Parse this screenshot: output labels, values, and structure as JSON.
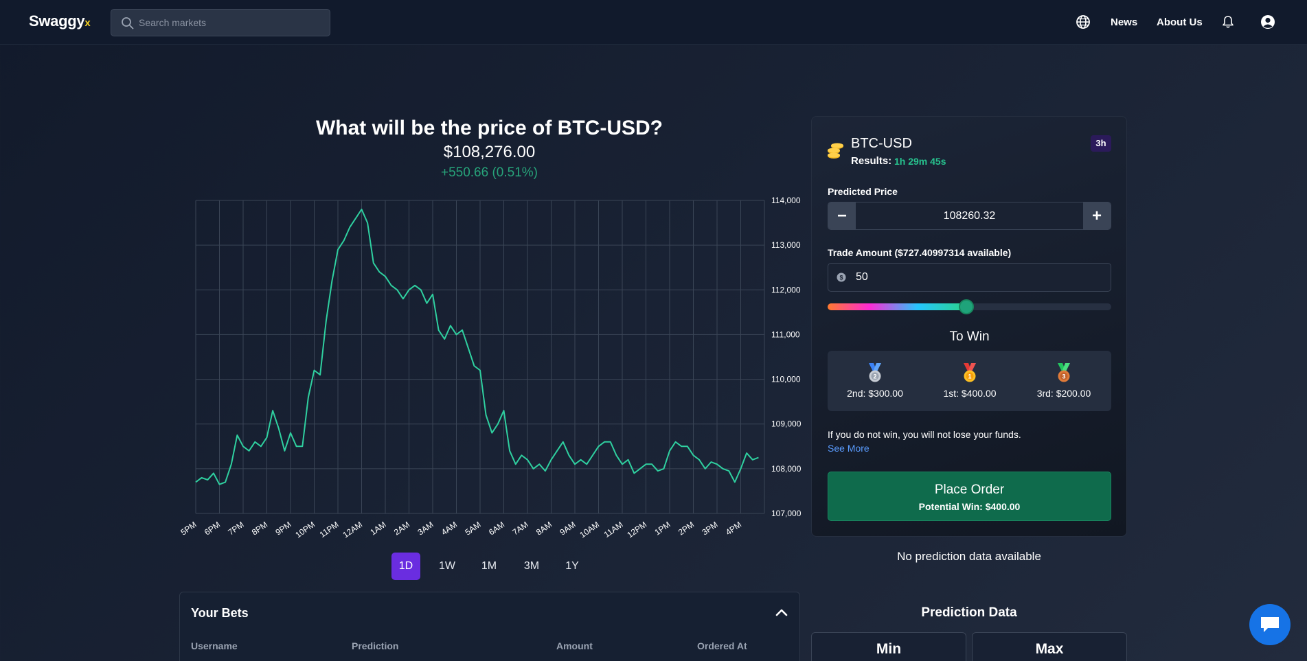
{
  "app": {
    "logo_main": "Swaggy",
    "logo_accent": "x"
  },
  "nav": {
    "search_placeholder": "Search markets",
    "news": "News",
    "about": "About Us",
    "icons": [
      "search-icon",
      "globe-icon",
      "bell-icon",
      "user-icon"
    ]
  },
  "market": {
    "question": "What will be the price of BTC-USD?",
    "price": "$108,276.00",
    "change": "+550.66 (0.51%)",
    "change_color": "#27a37a"
  },
  "ranges": {
    "options": [
      "1D",
      "1W",
      "1M",
      "3M",
      "1Y"
    ],
    "selected": "1D"
  },
  "bets": {
    "title": "Your Bets",
    "columns": [
      "Username",
      "Prediction",
      "Amount",
      "Ordered At"
    ]
  },
  "order": {
    "pair": "BTC-USD",
    "badge": "3h",
    "results_label": "Results:",
    "results_time": "1h 29m 45s",
    "predicted_label": "Predicted Price",
    "predicted_value": "108260.32",
    "amount_label": "Trade Amount ($727.40997314 available)",
    "amount_value": "50",
    "slider_fraction": 0.49,
    "to_win": "To Win",
    "prizes": [
      {
        "label": "2nd: $300.00",
        "medal": "silver-medal-icon"
      },
      {
        "label": "1st: $400.00",
        "medal": "gold-medal-icon"
      },
      {
        "label": "3rd: $200.00",
        "medal": "bronze-medal-icon"
      }
    ],
    "note": "If you do not win, you will not lose your funds.",
    "see_more": "See More",
    "button": "Place Order",
    "potential_win": "Potential Win: $400.00"
  },
  "prediction": {
    "empty": "No prediction data available",
    "title": "Prediction Data",
    "min": "Min",
    "max": "Max"
  },
  "chart_data": {
    "type": "line",
    "title": "",
    "xlabel": "",
    "ylabel": "",
    "ylim": [
      107000,
      114000
    ],
    "yticks": [
      "114,000",
      "113,000",
      "112,000",
      "111,000",
      "110,000",
      "109,000",
      "108,000",
      "107,000"
    ],
    "ytick_values": [
      114000,
      113000,
      112000,
      111000,
      110000,
      109000,
      108000,
      107000
    ],
    "xticks": [
      "5PM",
      "6PM",
      "7PM",
      "8PM",
      "9PM",
      "10PM",
      "11PM",
      "12AM",
      "1AM",
      "2AM",
      "3AM",
      "4AM",
      "5AM",
      "6AM",
      "7AM",
      "8AM",
      "9AM",
      "10AM",
      "11AM",
      "12PM",
      "1PM",
      "2PM",
      "3PM",
      "4PM"
    ],
    "grid": true,
    "line_color": "#2fd0a0",
    "series": [
      {
        "x": [
          0,
          0.25,
          0.5,
          0.75,
          1.0,
          1.25,
          1.5,
          1.75,
          2.0,
          2.25,
          2.5,
          2.75,
          3.0,
          3.25,
          3.5,
          3.75,
          4.0,
          4.25,
          4.5,
          4.75,
          5.0,
          5.25,
          5.5,
          5.75,
          6.0,
          6.25,
          6.5,
          6.75,
          7.0,
          7.25,
          7.5,
          7.75,
          8.0,
          8.25,
          8.5,
          8.75,
          9.0,
          9.25,
          9.5,
          9.75,
          10.0,
          10.25,
          10.5,
          10.75,
          11.0,
          11.25,
          11.5,
          11.75,
          12.0,
          12.25,
          12.5,
          12.75,
          13.0,
          13.25,
          13.5,
          13.75,
          14.0,
          14.25,
          14.5,
          14.75,
          15.0,
          15.25,
          15.5,
          15.75,
          16.0,
          16.25,
          16.5,
          16.75,
          17.0,
          17.25,
          17.5,
          17.75,
          18.0,
          18.25,
          18.5,
          18.75,
          19.0,
          19.25,
          19.5,
          19.75,
          20.0,
          20.25,
          20.5,
          20.75,
          21.0,
          21.25,
          21.5,
          21.75,
          22.0,
          22.25,
          22.5,
          22.75,
          23.0,
          23.25,
          23.5,
          23.75
        ],
        "values": [
          107700,
          107800,
          107750,
          107900,
          107650,
          107700,
          108100,
          108750,
          108500,
          108400,
          108600,
          108500,
          108700,
          109300,
          108900,
          108400,
          108800,
          108500,
          108500,
          109600,
          110200,
          110100,
          111300,
          112200,
          112900,
          113100,
          113400,
          113600,
          113800,
          113500,
          112600,
          112400,
          112300,
          112100,
          112000,
          111800,
          112000,
          112100,
          112000,
          111700,
          111900,
          111100,
          110900,
          111200,
          111000,
          111100,
          110700,
          110300,
          110200,
          109200,
          108800,
          109000,
          109300,
          108400,
          108100,
          108300,
          108200,
          108000,
          108100,
          107950,
          108200,
          108400,
          108600,
          108300,
          108100,
          108200,
          108100,
          108300,
          108500,
          108600,
          108600,
          108300,
          108100,
          108200,
          107900,
          108000,
          108100,
          108100,
          107950,
          108000,
          108400,
          108600,
          108500,
          108500,
          108300,
          108200,
          108000,
          108150,
          108100,
          108000,
          107950,
          107700,
          108000,
          108350,
          108200,
          108250
        ]
      }
    ]
  }
}
